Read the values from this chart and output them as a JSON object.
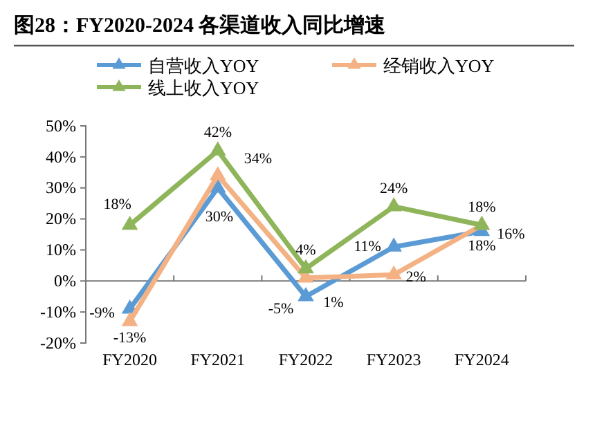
{
  "chart_data": {
    "type": "line",
    "title": "图28：FY2020-2024 各渠道收入同比增速",
    "categories": [
      "FY2020",
      "FY2021",
      "FY2022",
      "FY2023",
      "FY2024"
    ],
    "series": [
      {
        "name": "自营收入YOY",
        "color": "#5b9bd5",
        "values": [
          -9,
          30,
          -5,
          11,
          16
        ],
        "value_labels": [
          "-9%",
          "30%",
          "-5%",
          "11%",
          "16%"
        ]
      },
      {
        "name": "经销收入YOY",
        "color": "#f4b183",
        "values": [
          -13,
          34,
          1,
          2,
          18
        ],
        "value_labels": [
          "-13%",
          "34%",
          "1%",
          "2%",
          "18%"
        ]
      },
      {
        "name": "线上收入YOY",
        "color": "#8fb55a",
        "values": [
          18,
          42,
          4,
          24,
          18
        ],
        "value_labels": [
          "18%",
          "42%",
          "4%",
          "24%",
          "18%"
        ]
      }
    ],
    "ylim": [
      -20,
      50
    ],
    "yticks": [
      {
        "value": -20,
        "label": "-20%"
      },
      {
        "value": -10,
        "label": "-10%"
      },
      {
        "value": 0,
        "label": "0%"
      },
      {
        "value": 10,
        "label": "10%"
      },
      {
        "value": 20,
        "label": "20%"
      },
      {
        "value": 30,
        "label": "30%"
      },
      {
        "value": 40,
        "label": "40%"
      },
      {
        "value": 50,
        "label": "50%"
      }
    ],
    "legend": "top",
    "marker": "triangle",
    "line_style": "solid"
  }
}
